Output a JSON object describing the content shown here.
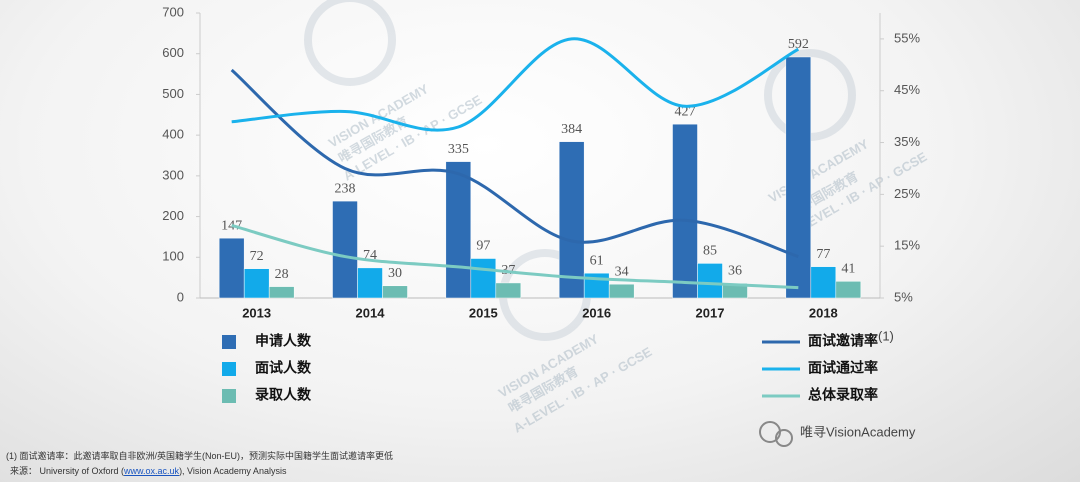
{
  "chart_data": {
    "type": "bar",
    "categories": [
      "2013",
      "2014",
      "2015",
      "2016",
      "2017",
      "2018"
    ],
    "ylim": [
      0,
      700
    ],
    "yticks": [
      0,
      100,
      200,
      300,
      400,
      500,
      600,
      700
    ],
    "y2lim": [
      5,
      60
    ],
    "y2ticks": [
      {
        "value": 5,
        "label": "5%"
      },
      {
        "value": 15,
        "label": "15%"
      },
      {
        "value": 25,
        "label": "25%"
      },
      {
        "value": 35,
        "label": "35%"
      },
      {
        "value": 45,
        "label": "45%"
      },
      {
        "value": 55,
        "label": "55%"
      }
    ],
    "series": [
      {
        "name": "申请人数",
        "type": "bar",
        "color": "#2e6db4",
        "values": [
          147,
          238,
          335,
          384,
          427,
          592
        ]
      },
      {
        "name": "面试人数",
        "type": "bar",
        "color": "#12aaea",
        "values": [
          72,
          74,
          97,
          61,
          85,
          77
        ]
      },
      {
        "name": "录取人数",
        "type": "bar",
        "color": "#6cbcb2",
        "values": [
          28,
          30,
          37,
          34,
          36,
          41
        ]
      },
      {
        "name": "面试邀请率",
        "name_note": "(1)",
        "type": "line",
        "axis": "y2",
        "color": "#2d68ad",
        "values": [
          49,
          30,
          29,
          16,
          20,
          13
        ]
      },
      {
        "name": "面试通过率",
        "type": "line",
        "axis": "y2",
        "color": "#1ab2ec",
        "values": [
          39,
          41,
          38,
          55,
          42,
          53
        ]
      },
      {
        "name": "总体录取率",
        "type": "line",
        "axis": "y2",
        "color": "#7ccbc2",
        "values": [
          19,
          13,
          11,
          9,
          8,
          7
        ]
      }
    ]
  },
  "watermark": {
    "title": "VISION ACADEMY",
    "chinese": "唯寻国际教育",
    "tagline": "A-LEVEL · IB · AP · GCSE"
  },
  "brand": "唯寻VisionAcademy",
  "footnote": "(1) 面试邀请率：此邀请率取自非欧洲/英国籍学生(Non-EU)，预测实际中国籍学生面试邀请率更低",
  "source": {
    "prefix": "来源： University of Oxford (",
    "link": "www.ox.ac.uk",
    "suffix": "), Vision Academy Analysis"
  }
}
